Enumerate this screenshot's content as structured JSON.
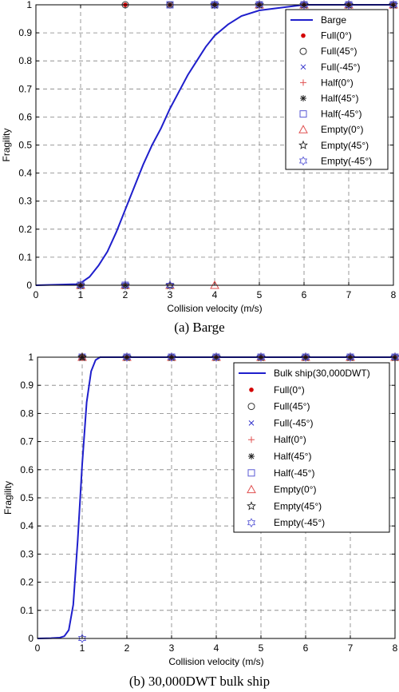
{
  "chart_data": [
    {
      "type": "line",
      "caption": "(a) Barge",
      "xlabel": "Collision velocity (m/s)",
      "ylabel": "Fragility",
      "xlim": [
        0,
        8
      ],
      "ylim": [
        0,
        1
      ],
      "x_ticks": [
        "0",
        "1",
        "2",
        "3",
        "4",
        "5",
        "6",
        "7",
        "8"
      ],
      "y_ticks": [
        "0",
        "0.1",
        "0.2",
        "0.3",
        "0.4",
        "0.5",
        "0.6",
        "0.7",
        "0.8",
        "0.9",
        "1"
      ],
      "grid": true,
      "legend_position": "top-right",
      "curve": {
        "name": "Barge",
        "color": "#1f1fcc",
        "points": [
          [
            0,
            0
          ],
          [
            0.5,
            0.002
          ],
          [
            0.9,
            0.004
          ],
          [
            1.0,
            0.008
          ],
          [
            1.2,
            0.03
          ],
          [
            1.4,
            0.07
          ],
          [
            1.6,
            0.12
          ],
          [
            1.8,
            0.19
          ],
          [
            2.0,
            0.27
          ],
          [
            2.2,
            0.35
          ],
          [
            2.4,
            0.43
          ],
          [
            2.6,
            0.5
          ],
          [
            2.8,
            0.56
          ],
          [
            3.0,
            0.63
          ],
          [
            3.2,
            0.69
          ],
          [
            3.4,
            0.75
          ],
          [
            3.6,
            0.8
          ],
          [
            3.8,
            0.85
          ],
          [
            4.0,
            0.89
          ],
          [
            4.3,
            0.93
          ],
          [
            4.6,
            0.96
          ],
          [
            5.0,
            0.98
          ],
          [
            5.5,
            0.99
          ],
          [
            6.0,
            1.0
          ],
          [
            8.0,
            1.0
          ]
        ]
      },
      "series": [
        {
          "name": "Full(0°)",
          "marker": "dot",
          "color": "#d40000",
          "points": [
            [
              1,
              0
            ],
            [
              2,
              1
            ],
            [
              3,
              1
            ],
            [
              4,
              1
            ],
            [
              5,
              1
            ],
            [
              6,
              1
            ],
            [
              7,
              1
            ],
            [
              8,
              1
            ]
          ]
        },
        {
          "name": "Full(45°)",
          "marker": "circle",
          "color": "#333333",
          "points": [
            [
              1,
              0
            ],
            [
              2,
              1
            ],
            [
              3,
              1
            ],
            [
              4,
              1
            ],
            [
              5,
              1
            ],
            [
              6,
              1
            ],
            [
              7,
              1
            ],
            [
              8,
              1
            ]
          ]
        },
        {
          "name": "Full(-45°)",
          "marker": "x",
          "color": "#3333cc",
          "points": [
            [
              1,
              0
            ],
            [
              2,
              0
            ],
            [
              3,
              1
            ],
            [
              4,
              1
            ],
            [
              5,
              1
            ],
            [
              6,
              1
            ],
            [
              7,
              1
            ],
            [
              8,
              1
            ]
          ]
        },
        {
          "name": "Half(0°)",
          "marker": "plus",
          "color": "#e05050",
          "points": [
            [
              1,
              0
            ],
            [
              2,
              0
            ],
            [
              3,
              1
            ],
            [
              4,
              1
            ],
            [
              5,
              1
            ],
            [
              6,
              1
            ],
            [
              7,
              1
            ],
            [
              8,
              1
            ]
          ]
        },
        {
          "name": "Half(45°)",
          "marker": "asterisk",
          "color": "#222222",
          "points": [
            [
              1,
              0
            ],
            [
              2,
              0
            ],
            [
              3,
              1
            ],
            [
              4,
              1
            ],
            [
              5,
              1
            ],
            [
              6,
              1
            ],
            [
              7,
              1
            ],
            [
              8,
              1
            ]
          ]
        },
        {
          "name": "Half(-45°)",
          "marker": "square",
          "color": "#5a5ad6",
          "points": [
            [
              1,
              0
            ],
            [
              2,
              0
            ],
            [
              3,
              1
            ],
            [
              4,
              1
            ],
            [
              5,
              1
            ],
            [
              6,
              1
            ],
            [
              7,
              1
            ],
            [
              8,
              1
            ]
          ]
        },
        {
          "name": "Empty(0°)",
          "marker": "triangle",
          "color": "#e05050",
          "points": [
            [
              1,
              0
            ],
            [
              2,
              0
            ],
            [
              3,
              0
            ],
            [
              4,
              0
            ],
            [
              5,
              1
            ],
            [
              6,
              1
            ],
            [
              7,
              1
            ],
            [
              8,
              1
            ]
          ]
        },
        {
          "name": "Empty(45°)",
          "marker": "star",
          "color": "#222222",
          "points": [
            [
              1,
              0
            ],
            [
              2,
              0
            ],
            [
              3,
              0
            ],
            [
              4,
              1
            ],
            [
              5,
              1
            ],
            [
              6,
              1
            ],
            [
              7,
              1
            ],
            [
              8,
              1
            ]
          ]
        },
        {
          "name": "Empty(-45°)",
          "marker": "hexagram",
          "color": "#5a5ad6",
          "points": [
            [
              1,
              0
            ],
            [
              2,
              0
            ],
            [
              3,
              0
            ],
            [
              4,
              1
            ],
            [
              5,
              1
            ],
            [
              6,
              1
            ],
            [
              7,
              1
            ],
            [
              8,
              1
            ]
          ]
        }
      ]
    },
    {
      "type": "line",
      "caption": "(b) 30,000DWT bulk ship",
      "xlabel": "Collision velocity (m/s)",
      "ylabel": "Fragility",
      "xlim": [
        0,
        8
      ],
      "ylim": [
        0,
        1
      ],
      "x_ticks": [
        "0",
        "1",
        "2",
        "3",
        "4",
        "5",
        "6",
        "7",
        "8"
      ],
      "y_ticks": [
        "0",
        "0.1",
        "0.2",
        "0.3",
        "0.4",
        "0.5",
        "0.6",
        "0.7",
        "0.8",
        "0.9",
        "1"
      ],
      "grid": true,
      "legend_position": "top-right",
      "curve": {
        "name": "Bulk ship(30,000DWT)",
        "color": "#1f1fcc",
        "points": [
          [
            0,
            0
          ],
          [
            0.3,
            0.001
          ],
          [
            0.5,
            0.003
          ],
          [
            0.6,
            0.008
          ],
          [
            0.7,
            0.03
          ],
          [
            0.8,
            0.12
          ],
          [
            0.9,
            0.35
          ],
          [
            1.0,
            0.62
          ],
          [
            1.1,
            0.84
          ],
          [
            1.2,
            0.95
          ],
          [
            1.3,
            0.99
          ],
          [
            1.4,
            1.0
          ],
          [
            8.0,
            1.0
          ]
        ]
      },
      "series": [
        {
          "name": "Full(0°)",
          "marker": "dot",
          "color": "#d40000",
          "points": [
            [
              1,
              1
            ],
            [
              2,
              1
            ],
            [
              3,
              1
            ],
            [
              4,
              1
            ],
            [
              5,
              1
            ],
            [
              6,
              1
            ],
            [
              7,
              1
            ],
            [
              8,
              1
            ]
          ]
        },
        {
          "name": "Full(45°)",
          "marker": "circle",
          "color": "#333333",
          "points": [
            [
              1,
              1
            ],
            [
              2,
              1
            ],
            [
              3,
              1
            ],
            [
              4,
              1
            ],
            [
              5,
              1
            ],
            [
              6,
              1
            ],
            [
              7,
              1
            ],
            [
              8,
              1
            ]
          ]
        },
        {
          "name": "Full(-45°)",
          "marker": "x",
          "color": "#3333cc",
          "points": [
            [
              1,
              1
            ],
            [
              2,
              1
            ],
            [
              3,
              1
            ],
            [
              4,
              1
            ],
            [
              5,
              1
            ],
            [
              6,
              1
            ],
            [
              7,
              1
            ],
            [
              8,
              1
            ]
          ]
        },
        {
          "name": "Half(0°)",
          "marker": "plus",
          "color": "#e05050",
          "points": [
            [
              1,
              1
            ],
            [
              2,
              1
            ],
            [
              3,
              1
            ],
            [
              4,
              1
            ],
            [
              5,
              1
            ],
            [
              6,
              1
            ],
            [
              7,
              1
            ],
            [
              8,
              1
            ]
          ]
        },
        {
          "name": "Half(45°)",
          "marker": "asterisk",
          "color": "#222222",
          "points": [
            [
              1,
              1
            ],
            [
              2,
              1
            ],
            [
              3,
              1
            ],
            [
              4,
              1
            ],
            [
              5,
              1
            ],
            [
              6,
              1
            ],
            [
              7,
              1
            ],
            [
              8,
              1
            ]
          ]
        },
        {
          "name": "Half(-45°)",
          "marker": "square",
          "color": "#5a5ad6",
          "points": [
            [
              1,
              1
            ],
            [
              2,
              1
            ],
            [
              3,
              1
            ],
            [
              4,
              1
            ],
            [
              5,
              1
            ],
            [
              6,
              1
            ],
            [
              7,
              1
            ],
            [
              8,
              1
            ]
          ]
        },
        {
          "name": "Empty(0°)",
          "marker": "triangle",
          "color": "#e05050",
          "points": [
            [
              1,
              1
            ],
            [
              2,
              1
            ],
            [
              3,
              1
            ],
            [
              4,
              1
            ],
            [
              5,
              1
            ],
            [
              6,
              1
            ],
            [
              7,
              1
            ],
            [
              8,
              1
            ]
          ]
        },
        {
          "name": "Empty(45°)",
          "marker": "star",
          "color": "#222222",
          "points": [
            [
              1,
              1
            ],
            [
              2,
              1
            ],
            [
              3,
              1
            ],
            [
              4,
              1
            ],
            [
              5,
              1
            ],
            [
              6,
              1
            ],
            [
              7,
              1
            ],
            [
              8,
              1
            ]
          ]
        },
        {
          "name": "Empty(-45°)",
          "marker": "hexagram",
          "color": "#5a5ad6",
          "points": [
            [
              1,
              0
            ],
            [
              2,
              1
            ],
            [
              3,
              1
            ],
            [
              4,
              1
            ],
            [
              5,
              1
            ],
            [
              6,
              1
            ],
            [
              7,
              1
            ],
            [
              8,
              1
            ]
          ]
        }
      ]
    }
  ]
}
